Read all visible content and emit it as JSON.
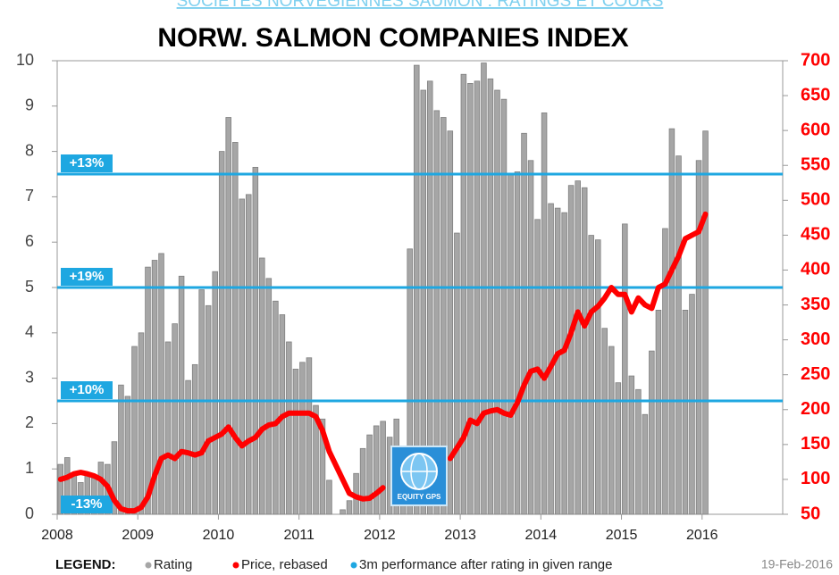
{
  "header": "SOCIETES NORVEGIENNES SAUMON : RATINGS ET COURS",
  "chart_data": {
    "type": "bar-line",
    "title": "NORW. SALMON COMPANIES INDEX",
    "x": [
      2008,
      2008.083,
      2008.167,
      2008.25,
      2008.333,
      2008.417,
      2008.5,
      2008.583,
      2008.667,
      2008.75,
      2008.833,
      2008.917,
      2009,
      2009.083,
      2009.167,
      2009.25,
      2009.333,
      2009.417,
      2009.5,
      2009.583,
      2009.667,
      2009.75,
      2009.833,
      2009.917,
      2010,
      2010.083,
      2010.167,
      2010.25,
      2010.333,
      2010.417,
      2010.5,
      2010.583,
      2010.667,
      2010.75,
      2010.833,
      2010.917,
      2011,
      2011.083,
      2011.167,
      2011.25,
      2011.333,
      2011.417,
      2011.5,
      2011.583,
      2011.667,
      2011.75,
      2011.833,
      2011.917,
      2012,
      2012.083,
      2012.167,
      2012.25,
      2012.333,
      2012.417,
      2012.5,
      2012.583,
      2012.667,
      2012.75,
      2012.833,
      2012.917,
      2013,
      2013.083,
      2013.167,
      2013.25,
      2013.333,
      2013.417,
      2013.5,
      2013.583,
      2013.667,
      2013.75,
      2013.833,
      2013.917,
      2014,
      2014.083,
      2014.167,
      2014.25,
      2014.333,
      2014.417,
      2014.5,
      2014.583,
      2014.667,
      2014.75,
      2014.833,
      2014.917,
      2015,
      2015.083,
      2015.167,
      2015.25,
      2015.333,
      2015.417,
      2015.5,
      2015.583,
      2015.667,
      2015.75,
      2015.833,
      2015.917,
      2016
    ],
    "series": [
      {
        "name": "Rating",
        "color": "#a6a6a6",
        "axis": "y",
        "values": [
          1.1,
          1.25,
          0.9,
          0.7,
          0.85,
          0.8,
          1.15,
          1.1,
          1.6,
          2.85,
          2.6,
          3.7,
          4.0,
          5.45,
          5.6,
          5.75,
          3.8,
          4.2,
          5.25,
          2.95,
          3.3,
          4.95,
          4.6,
          5.35,
          8.0,
          8.75,
          8.2,
          6.95,
          7.05,
          7.65,
          5.65,
          5.2,
          4.7,
          4.4,
          3.8,
          3.2,
          3.35,
          3.45,
          2.4,
          2.1,
          0.75,
          0.0,
          0.1,
          0.3,
          0.9,
          1.45,
          1.75,
          1.95,
          2.05,
          1.7,
          2.1,
          1.5,
          5.85,
          9.9,
          9.35,
          9.55,
          8.9,
          8.75,
          8.45,
          6.2,
          9.7,
          9.5,
          9.55,
          9.95,
          9.6,
          9.35,
          9.15,
          7.5,
          7.55,
          8.4,
          7.8,
          6.5,
          8.85,
          6.85,
          6.75,
          6.65,
          7.25,
          7.35,
          7.2,
          6.15,
          6.05,
          4.1,
          3.7,
          2.9,
          6.4,
          3.05,
          2.75,
          2.2,
          3.6,
          4.5,
          6.3,
          8.5,
          7.9,
          4.5,
          4.85,
          7.8,
          8.45
        ]
      },
      {
        "name": "Price, rebased",
        "color": "#ff0000",
        "axis": "y2",
        "values": [
          100,
          103,
          108,
          110,
          108,
          105,
          100,
          90,
          70,
          58,
          55,
          55,
          60,
          75,
          105,
          130,
          135,
          130,
          140,
          138,
          135,
          138,
          155,
          160,
          165,
          175,
          160,
          148,
          155,
          160,
          172,
          178,
          180,
          190,
          195,
          195,
          195,
          195,
          190,
          170,
          140,
          120,
          100,
          80,
          75,
          72,
          73,
          80,
          88,
          null,
          null,
          null,
          null,
          null,
          null,
          null,
          null,
          null,
          130,
          145,
          160,
          185,
          180,
          195,
          198,
          200,
          195,
          192,
          210,
          235,
          255,
          258,
          245,
          262,
          280,
          285,
          310,
          340,
          320,
          340,
          348,
          360,
          375,
          365,
          365,
          340,
          360,
          350,
          345,
          375,
          380,
          400,
          420,
          445,
          450,
          455,
          480
        ]
      }
    ],
    "reference_lines": [
      {
        "value": 7.5,
        "label": "+13%"
      },
      {
        "value": 5,
        "label": "+19%"
      },
      {
        "value": 2.5,
        "label": "+10%"
      },
      {
        "value": 0,
        "label": "-13%"
      }
    ],
    "reference_color": "#1ea7e1",
    "xlim": [
      2008,
      2017
    ],
    "xticks": [
      2008,
      2009,
      2010,
      2011,
      2012,
      2013,
      2014,
      2015,
      2016
    ],
    "ylim": [
      0,
      10
    ],
    "yticks": [
      0,
      1,
      2,
      3,
      4,
      5,
      6,
      7,
      8,
      9,
      10
    ],
    "y2lim": [
      50,
      700
    ],
    "y2ticks": [
      50,
      100,
      150,
      200,
      250,
      300,
      350,
      400,
      450,
      500,
      550,
      600,
      650,
      700
    ],
    "legend_title": "LEGEND:",
    "legend_extra": "3m performance after rating in given range",
    "date": "19-Feb-2016",
    "logo": "EQUITY GPS"
  }
}
